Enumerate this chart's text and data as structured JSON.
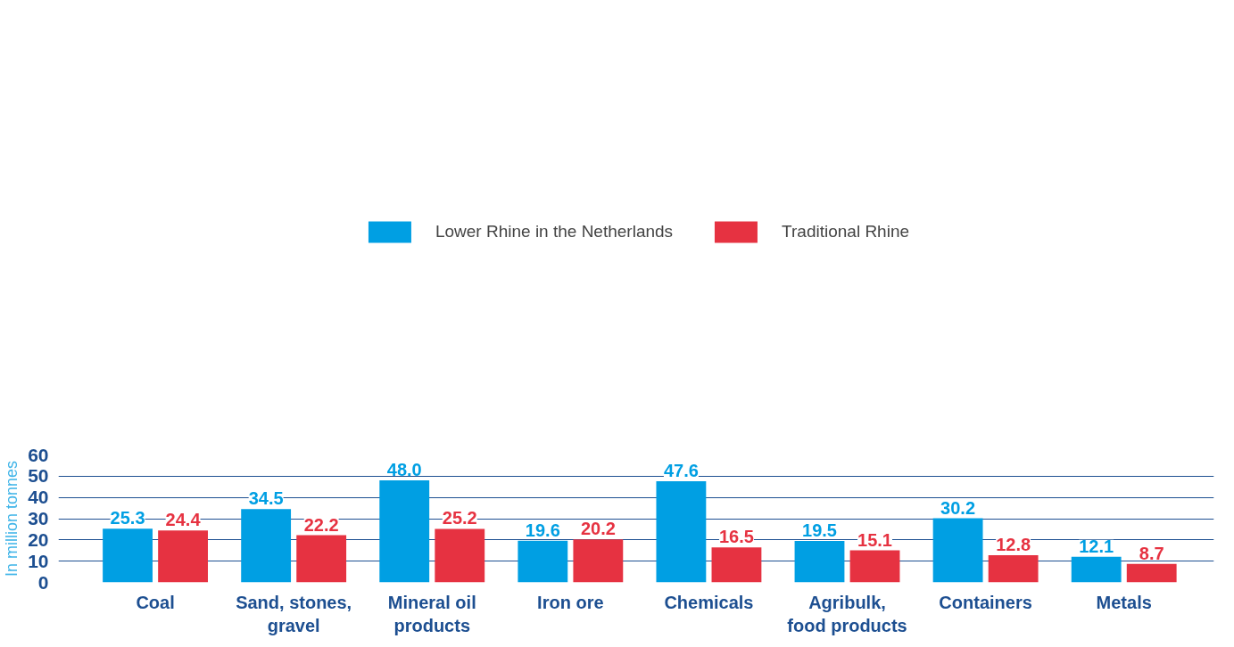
{
  "chart_data": {
    "type": "bar",
    "ylabel": "In million tonnes",
    "categories": [
      "Coal",
      "Sand, stones, gravel",
      "Mineral oil products",
      "Iron ore",
      "Chemicals",
      "Agribulk, food products",
      "Containers",
      "Metals"
    ],
    "series": [
      {
        "name": "Lower Rhine in the Netherlands",
        "color": "#009fe3",
        "values": [
          25.3,
          34.5,
          48.0,
          19.6,
          47.6,
          19.5,
          30.2,
          12.1
        ],
        "value_labels": [
          "25.3",
          "34.5",
          "48.0",
          "19.6",
          "47.6",
          "19.5",
          "30.2",
          "12.1"
        ]
      },
      {
        "name": "Traditional Rhine",
        "color": "#e63241",
        "values": [
          24.4,
          22.2,
          25.2,
          20.2,
          16.5,
          15.1,
          12.8,
          8.7
        ],
        "value_labels": [
          "24.4",
          "22.2",
          "25.2",
          "20.2",
          "16.5",
          "15.1",
          "12.8",
          "8.7"
        ]
      }
    ],
    "ylim": [
      0,
      60
    ],
    "yticks": [
      0,
      10,
      20,
      30,
      40,
      50,
      60
    ],
    "grid": "y",
    "legend": "top"
  }
}
